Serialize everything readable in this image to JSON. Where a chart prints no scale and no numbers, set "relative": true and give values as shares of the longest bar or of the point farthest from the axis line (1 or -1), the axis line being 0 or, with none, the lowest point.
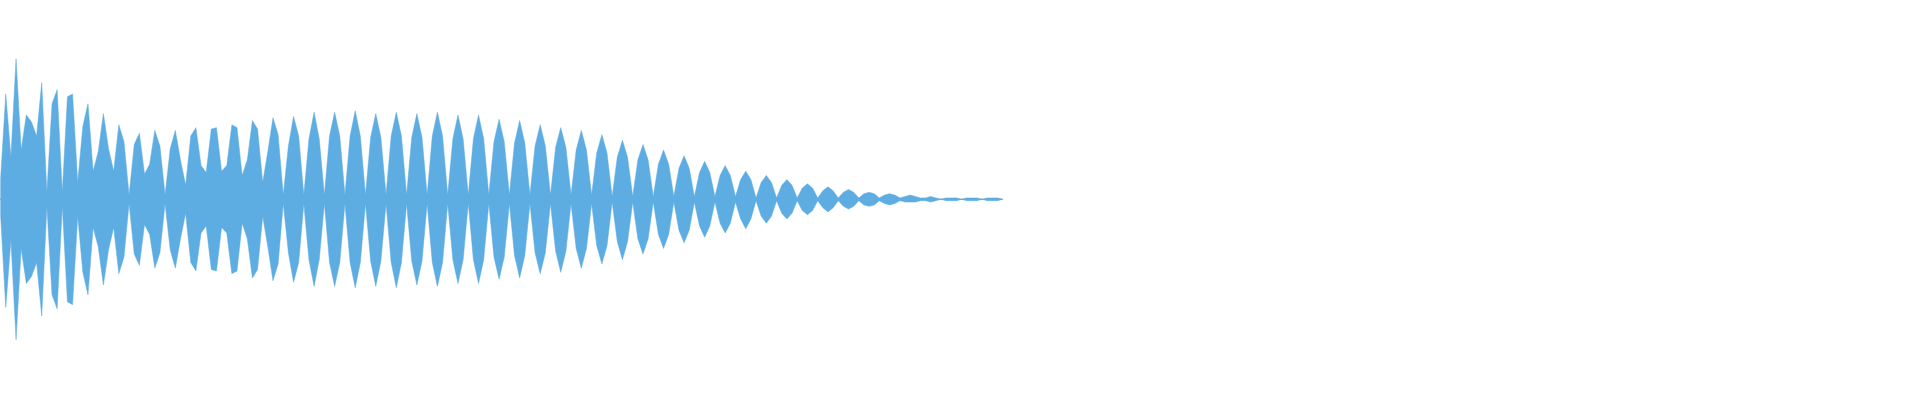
{
  "chart_data": {
    "type": "area",
    "relative": true,
    "categories": [
      null,
      null,
      null,
      null,
      null,
      null,
      null,
      null,
      null,
      null,
      null,
      null,
      null,
      null,
      null,
      null,
      null,
      null,
      null,
      null,
      null,
      null,
      null,
      null,
      null,
      null,
      null,
      null,
      null,
      null,
      null,
      null,
      null,
      null,
      null,
      null,
      null,
      null,
      null,
      null,
      null,
      null,
      null,
      null,
      null,
      null,
      null,
      null,
      null,
      null,
      null,
      null,
      null,
      null,
      null,
      null,
      null,
      null,
      null,
      null,
      null,
      null,
      null,
      null,
      null,
      null,
      null,
      null,
      null,
      null,
      null,
      null,
      null,
      null,
      null,
      null,
      null,
      null,
      null,
      null,
      null,
      null,
      null,
      null,
      null,
      null,
      null,
      null,
      null,
      null,
      null,
      null,
      null,
      null,
      null,
      null,
      null,
      null,
      null,
      null,
      null,
      null,
      null,
      null,
      null,
      null,
      null,
      null,
      null,
      null,
      null,
      null,
      null,
      null,
      null,
      null,
      null,
      null,
      null,
      null,
      null,
      null,
      null,
      null,
      null,
      null,
      null,
      null,
      null,
      null,
      null,
      null,
      null,
      null,
      null,
      null,
      null,
      null,
      null,
      null,
      null,
      null,
      null,
      null,
      null,
      null,
      null,
      null,
      null,
      null,
      null,
      null,
      null,
      null,
      null,
      null,
      null,
      null,
      null,
      null,
      null,
      null,
      null,
      null,
      null,
      null,
      null,
      null,
      null,
      null,
      null,
      null,
      null,
      null,
      null,
      null,
      null,
      null,
      null,
      null,
      null,
      null,
      null,
      null,
      null,
      null,
      null,
      null,
      null,
      null,
      null,
      null,
      null,
      null,
      null,
      null
    ],
    "series": [
      {
        "color": "#5dade2",
        "values": [
          0.15,
          0.75,
          0.3,
          1.0,
          0.35,
          0.6,
          0.55,
          0.45,
          0.83,
          0.05,
          0.68,
          0.78,
          0.05,
          0.73,
          0.75,
          0.12,
          0.52,
          0.68,
          0.2,
          0.34,
          0.61,
          0.36,
          0.2,
          0.53,
          0.41,
          0.03,
          0.39,
          0.47,
          0.18,
          0.25,
          0.49,
          0.38,
          0.03,
          0.36,
          0.49,
          0.28,
          0.1,
          0.45,
          0.51,
          0.24,
          0.19,
          0.5,
          0.51,
          0.2,
          0.24,
          0.53,
          0.51,
          0.17,
          0.28,
          0.56,
          0.5,
          0.12,
          0.34,
          0.58,
          0.46,
          0.03,
          0.38,
          0.59,
          0.45,
          0.03,
          0.43,
          0.62,
          0.43,
          0.03,
          0.45,
          0.62,
          0.45,
          0.03,
          0.45,
          0.63,
          0.45,
          0.03,
          0.44,
          0.61,
          0.44,
          0.03,
          0.45,
          0.62,
          0.45,
          0.03,
          0.44,
          0.61,
          0.44,
          0.03,
          0.45,
          0.62,
          0.45,
          0.03,
          0.43,
          0.6,
          0.43,
          0.03,
          0.43,
          0.6,
          0.43,
          0.03,
          0.41,
          0.57,
          0.41,
          0.03,
          0.4,
          0.56,
          0.4,
          0.03,
          0.38,
          0.53,
          0.38,
          0.03,
          0.37,
          0.51,
          0.37,
          0.03,
          0.35,
          0.49,
          0.35,
          0.03,
          0.33,
          0.46,
          0.33,
          0.02,
          0.3,
          0.42,
          0.3,
          0.02,
          0.28,
          0.39,
          0.28,
          0.02,
          0.25,
          0.35,
          0.25,
          0.02,
          0.22,
          0.31,
          0.22,
          0.02,
          0.19,
          0.27,
          0.19,
          0.02,
          0.17,
          0.24,
          0.17,
          0.02,
          0.14,
          0.2,
          0.14,
          0.01,
          0.12,
          0.17,
          0.12,
          0.01,
          0.1,
          0.14,
          0.1,
          0.01,
          0.08,
          0.11,
          0.08,
          0.01,
          0.06,
          0.09,
          0.06,
          0.01,
          0.05,
          0.07,
          0.05,
          0.01,
          0.04,
          0.05,
          0.04,
          0.01,
          0.03,
          0.04,
          0.03,
          0.01,
          0.02,
          0.03,
          0.02,
          0.01,
          0.01,
          0.02,
          0.01,
          0,
          0.01,
          0.01,
          0.01,
          0,
          0.01,
          0.01,
          0.01,
          0,
          0.01,
          0.01,
          0.01,
          0
        ]
      },
      {
        "color": "#5dade2",
        "values": [
          -0.12,
          -0.77,
          -0.29,
          -1.0,
          -0.35,
          -0.6,
          -0.55,
          -0.45,
          -0.83,
          -0.05,
          -0.68,
          -0.78,
          -0.05,
          -0.73,
          -0.75,
          -0.12,
          -0.52,
          -0.68,
          -0.2,
          -0.34,
          -0.61,
          -0.36,
          -0.2,
          -0.53,
          -0.41,
          -0.03,
          -0.39,
          -0.47,
          -0.18,
          -0.25,
          -0.49,
          -0.38,
          -0.03,
          -0.36,
          -0.49,
          -0.28,
          -0.1,
          -0.45,
          -0.51,
          -0.24,
          -0.19,
          -0.5,
          -0.51,
          -0.2,
          -0.24,
          -0.53,
          -0.51,
          -0.17,
          -0.28,
          -0.56,
          -0.5,
          -0.12,
          -0.34,
          -0.58,
          -0.46,
          -0.03,
          -0.38,
          -0.59,
          -0.45,
          -0.03,
          -0.43,
          -0.62,
          -0.43,
          -0.03,
          -0.45,
          -0.62,
          -0.45,
          -0.03,
          -0.45,
          -0.63,
          -0.45,
          -0.03,
          -0.44,
          -0.62,
          -0.44,
          -0.03,
          -0.45,
          -0.63,
          -0.45,
          -0.03,
          -0.44,
          -0.61,
          -0.44,
          -0.03,
          -0.45,
          -0.62,
          -0.45,
          -0.03,
          -0.43,
          -0.6,
          -0.43,
          -0.03,
          -0.43,
          -0.6,
          -0.43,
          -0.03,
          -0.41,
          -0.57,
          -0.41,
          -0.03,
          -0.4,
          -0.56,
          -0.4,
          -0.03,
          -0.38,
          -0.53,
          -0.38,
          -0.03,
          -0.37,
          -0.52,
          -0.37,
          -0.03,
          -0.35,
          -0.49,
          -0.35,
          -0.03,
          -0.33,
          -0.46,
          -0.33,
          -0.02,
          -0.3,
          -0.43,
          -0.3,
          -0.02,
          -0.28,
          -0.39,
          -0.28,
          -0.02,
          -0.25,
          -0.35,
          -0.25,
          -0.02,
          -0.22,
          -0.31,
          -0.22,
          -0.02,
          -0.19,
          -0.27,
          -0.19,
          -0.02,
          -0.17,
          -0.24,
          -0.17,
          -0.02,
          -0.14,
          -0.21,
          -0.14,
          -0.01,
          -0.12,
          -0.17,
          -0.12,
          -0.01,
          -0.1,
          -0.14,
          -0.1,
          -0.01,
          -0.08,
          -0.11,
          -0.08,
          -0.01,
          -0.06,
          -0.09,
          -0.06,
          -0.01,
          -0.05,
          -0.07,
          -0.05,
          -0.01,
          -0.04,
          -0.05,
          -0.04,
          -0.01,
          -0.03,
          -0.04,
          -0.03,
          -0.01,
          -0.02,
          -0.02,
          -0.02,
          -0.01,
          -0.01,
          -0.02,
          -0.01,
          0,
          -0.01,
          -0.01,
          -0.01,
          0,
          -0.01,
          -0.01,
          -0.01,
          0,
          -0.01,
          -0.01,
          -0.01,
          0
        ]
      }
    ]
  }
}
